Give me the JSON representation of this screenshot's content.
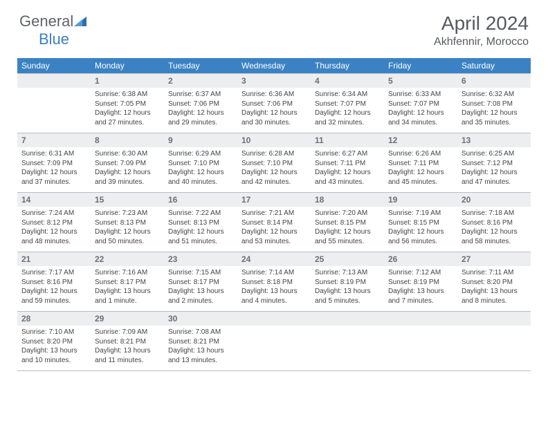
{
  "logo": {
    "text1": "General",
    "text2": "Blue",
    "text_color": "#606468",
    "accent_color": "#3b7fc4"
  },
  "title": "April 2024",
  "location": "Akhfennir, Morocco",
  "colors": {
    "header_bg": "#3b82c4",
    "header_text": "#ffffff",
    "daynum_bg": "#eceeef",
    "daynum_text": "#6b7074",
    "body_text": "#444444",
    "border": "#b8bdc1"
  },
  "day_headers": [
    "Sunday",
    "Monday",
    "Tuesday",
    "Wednesday",
    "Thursday",
    "Friday",
    "Saturday"
  ],
  "weeks": [
    {
      "nums": [
        "",
        "1",
        "2",
        "3",
        "4",
        "5",
        "6"
      ],
      "details": [
        null,
        {
          "sunrise": "Sunrise: 6:38 AM",
          "sunset": "Sunset: 7:05 PM",
          "daylight": "Daylight: 12 hours and 27 minutes."
        },
        {
          "sunrise": "Sunrise: 6:37 AM",
          "sunset": "Sunset: 7:06 PM",
          "daylight": "Daylight: 12 hours and 29 minutes."
        },
        {
          "sunrise": "Sunrise: 6:36 AM",
          "sunset": "Sunset: 7:06 PM",
          "daylight": "Daylight: 12 hours and 30 minutes."
        },
        {
          "sunrise": "Sunrise: 6:34 AM",
          "sunset": "Sunset: 7:07 PM",
          "daylight": "Daylight: 12 hours and 32 minutes."
        },
        {
          "sunrise": "Sunrise: 6:33 AM",
          "sunset": "Sunset: 7:07 PM",
          "daylight": "Daylight: 12 hours and 34 minutes."
        },
        {
          "sunrise": "Sunrise: 6:32 AM",
          "sunset": "Sunset: 7:08 PM",
          "daylight": "Daylight: 12 hours and 35 minutes."
        }
      ]
    },
    {
      "nums": [
        "7",
        "8",
        "9",
        "10",
        "11",
        "12",
        "13"
      ],
      "details": [
        {
          "sunrise": "Sunrise: 6:31 AM",
          "sunset": "Sunset: 7:09 PM",
          "daylight": "Daylight: 12 hours and 37 minutes."
        },
        {
          "sunrise": "Sunrise: 6:30 AM",
          "sunset": "Sunset: 7:09 PM",
          "daylight": "Daylight: 12 hours and 39 minutes."
        },
        {
          "sunrise": "Sunrise: 6:29 AM",
          "sunset": "Sunset: 7:10 PM",
          "daylight": "Daylight: 12 hours and 40 minutes."
        },
        {
          "sunrise": "Sunrise: 6:28 AM",
          "sunset": "Sunset: 7:10 PM",
          "daylight": "Daylight: 12 hours and 42 minutes."
        },
        {
          "sunrise": "Sunrise: 6:27 AM",
          "sunset": "Sunset: 7:11 PM",
          "daylight": "Daylight: 12 hours and 43 minutes."
        },
        {
          "sunrise": "Sunrise: 6:26 AM",
          "sunset": "Sunset: 7:11 PM",
          "daylight": "Daylight: 12 hours and 45 minutes."
        },
        {
          "sunrise": "Sunrise: 6:25 AM",
          "sunset": "Sunset: 7:12 PM",
          "daylight": "Daylight: 12 hours and 47 minutes."
        }
      ]
    },
    {
      "nums": [
        "14",
        "15",
        "16",
        "17",
        "18",
        "19",
        "20"
      ],
      "details": [
        {
          "sunrise": "Sunrise: 7:24 AM",
          "sunset": "Sunset: 8:12 PM",
          "daylight": "Daylight: 12 hours and 48 minutes."
        },
        {
          "sunrise": "Sunrise: 7:23 AM",
          "sunset": "Sunset: 8:13 PM",
          "daylight": "Daylight: 12 hours and 50 minutes."
        },
        {
          "sunrise": "Sunrise: 7:22 AM",
          "sunset": "Sunset: 8:13 PM",
          "daylight": "Daylight: 12 hours and 51 minutes."
        },
        {
          "sunrise": "Sunrise: 7:21 AM",
          "sunset": "Sunset: 8:14 PM",
          "daylight": "Daylight: 12 hours and 53 minutes."
        },
        {
          "sunrise": "Sunrise: 7:20 AM",
          "sunset": "Sunset: 8:15 PM",
          "daylight": "Daylight: 12 hours and 55 minutes."
        },
        {
          "sunrise": "Sunrise: 7:19 AM",
          "sunset": "Sunset: 8:15 PM",
          "daylight": "Daylight: 12 hours and 56 minutes."
        },
        {
          "sunrise": "Sunrise: 7:18 AM",
          "sunset": "Sunset: 8:16 PM",
          "daylight": "Daylight: 12 hours and 58 minutes."
        }
      ]
    },
    {
      "nums": [
        "21",
        "22",
        "23",
        "24",
        "25",
        "26",
        "27"
      ],
      "details": [
        {
          "sunrise": "Sunrise: 7:17 AM",
          "sunset": "Sunset: 8:16 PM",
          "daylight": "Daylight: 12 hours and 59 minutes."
        },
        {
          "sunrise": "Sunrise: 7:16 AM",
          "sunset": "Sunset: 8:17 PM",
          "daylight": "Daylight: 13 hours and 1 minute."
        },
        {
          "sunrise": "Sunrise: 7:15 AM",
          "sunset": "Sunset: 8:17 PM",
          "daylight": "Daylight: 13 hours and 2 minutes."
        },
        {
          "sunrise": "Sunrise: 7:14 AM",
          "sunset": "Sunset: 8:18 PM",
          "daylight": "Daylight: 13 hours and 4 minutes."
        },
        {
          "sunrise": "Sunrise: 7:13 AM",
          "sunset": "Sunset: 8:19 PM",
          "daylight": "Daylight: 13 hours and 5 minutes."
        },
        {
          "sunrise": "Sunrise: 7:12 AM",
          "sunset": "Sunset: 8:19 PM",
          "daylight": "Daylight: 13 hours and 7 minutes."
        },
        {
          "sunrise": "Sunrise: 7:11 AM",
          "sunset": "Sunset: 8:20 PM",
          "daylight": "Daylight: 13 hours and 8 minutes."
        }
      ]
    },
    {
      "nums": [
        "28",
        "29",
        "30",
        "",
        "",
        "",
        ""
      ],
      "details": [
        {
          "sunrise": "Sunrise: 7:10 AM",
          "sunset": "Sunset: 8:20 PM",
          "daylight": "Daylight: 13 hours and 10 minutes."
        },
        {
          "sunrise": "Sunrise: 7:09 AM",
          "sunset": "Sunset: 8:21 PM",
          "daylight": "Daylight: 13 hours and 11 minutes."
        },
        {
          "sunrise": "Sunrise: 7:08 AM",
          "sunset": "Sunset: 8:21 PM",
          "daylight": "Daylight: 13 hours and 13 minutes."
        },
        null,
        null,
        null,
        null
      ]
    }
  ]
}
